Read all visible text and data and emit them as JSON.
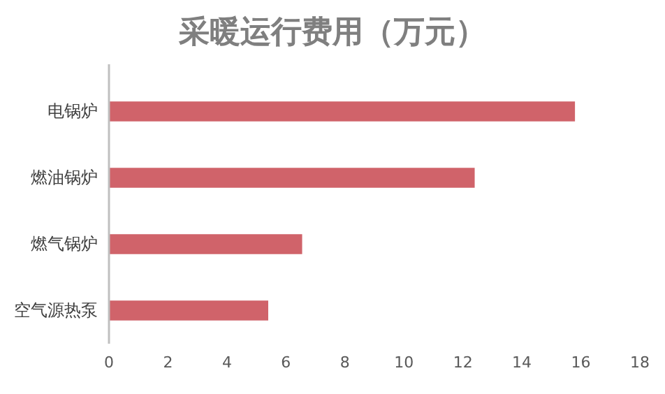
{
  "chart_data": {
    "type": "bar",
    "orientation": "horizontal",
    "title": "采暖运行费用（万元）",
    "categories": [
      "电锅炉",
      "燃油锅炉",
      "燃气锅炉",
      "空气源热泵"
    ],
    "values": [
      15.8,
      12.4,
      6.55,
      5.4
    ],
    "color": "#d0636a",
    "xlim": [
      0,
      18
    ],
    "xticks": [
      0,
      2,
      4,
      6,
      8,
      10,
      12,
      14,
      16,
      18
    ]
  }
}
